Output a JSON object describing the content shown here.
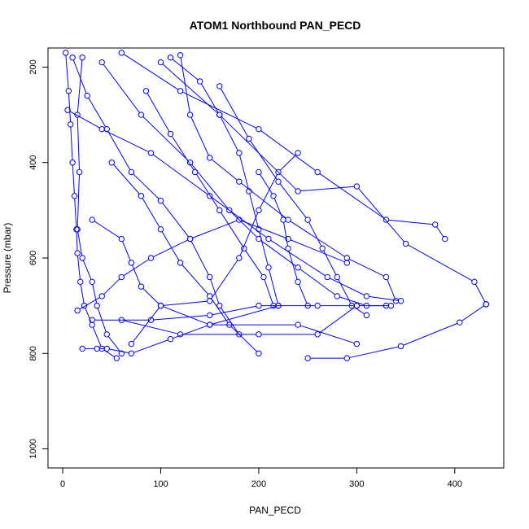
{
  "chart_data": {
    "type": "line",
    "title": "ATOM1 Northbound PAN_PECD",
    "xlabel": "PAN_PECD",
    "ylabel": "Pressure (mbar)",
    "xlim": [
      -15,
      450
    ],
    "ylim": [
      1040,
      160
    ],
    "y_reversed": true,
    "x_ticks": [
      0,
      100,
      200,
      300,
      400
    ],
    "y_ticks": [
      200,
      400,
      600,
      800,
      1000
    ],
    "grid": false,
    "legend": "none",
    "series_color": "#0000ff",
    "marker": "open-circle",
    "series": [
      {
        "values": [
          {
            "x": 3,
            "y": 170
          },
          {
            "x": 6,
            "y": 250
          },
          {
            "x": 8,
            "y": 320
          },
          {
            "x": 10,
            "y": 400
          },
          {
            "x": 12,
            "y": 470
          },
          {
            "x": 14,
            "y": 540
          },
          {
            "x": 15,
            "y": 590
          },
          {
            "x": 18,
            "y": 650
          },
          {
            "x": 22,
            "y": 700
          },
          {
            "x": 30,
            "y": 740
          },
          {
            "x": 40,
            "y": 790
          },
          {
            "x": 55,
            "y": 810
          }
        ]
      },
      {
        "values": [
          {
            "x": 20,
            "y": 180
          },
          {
            "x": 15,
            "y": 300
          },
          {
            "x": 17,
            "y": 420
          },
          {
            "x": 15,
            "y": 540
          },
          {
            "x": 20,
            "y": 600
          },
          {
            "x": 30,
            "y": 650
          },
          {
            "x": 35,
            "y": 700
          },
          {
            "x": 45,
            "y": 760
          },
          {
            "x": 60,
            "y": 800
          }
        ]
      },
      {
        "values": [
          {
            "x": 40,
            "y": 190
          },
          {
            "x": 80,
            "y": 300
          },
          {
            "x": 130,
            "y": 400
          },
          {
            "x": 170,
            "y": 500
          },
          {
            "x": 200,
            "y": 560
          },
          {
            "x": 240,
            "y": 620
          },
          {
            "x": 280,
            "y": 680
          },
          {
            "x": 310,
            "y": 700
          },
          {
            "x": 330,
            "y": 700
          }
        ]
      },
      {
        "values": [
          {
            "x": 60,
            "y": 170
          },
          {
            "x": 120,
            "y": 250
          },
          {
            "x": 200,
            "y": 330
          },
          {
            "x": 260,
            "y": 420
          },
          {
            "x": 330,
            "y": 520
          },
          {
            "x": 380,
            "y": 530
          },
          {
            "x": 390,
            "y": 560
          }
        ]
      },
      {
        "values": [
          {
            "x": 100,
            "y": 190
          },
          {
            "x": 160,
            "y": 300
          },
          {
            "x": 240,
            "y": 460
          },
          {
            "x": 300,
            "y": 450
          },
          {
            "x": 350,
            "y": 570
          },
          {
            "x": 420,
            "y": 650
          },
          {
            "x": 432,
            "y": 697
          }
        ]
      },
      {
        "values": [
          {
            "x": 30,
            "y": 730
          },
          {
            "x": 90,
            "y": 730
          },
          {
            "x": 150,
            "y": 720
          },
          {
            "x": 200,
            "y": 700
          },
          {
            "x": 260,
            "y": 700
          },
          {
            "x": 300,
            "y": 700
          },
          {
            "x": 335,
            "y": 700
          }
        ]
      },
      {
        "values": [
          {
            "x": 60,
            "y": 730
          },
          {
            "x": 120,
            "y": 760
          },
          {
            "x": 200,
            "y": 760
          },
          {
            "x": 260,
            "y": 760
          },
          {
            "x": 300,
            "y": 700
          }
        ]
      },
      {
        "values": [
          {
            "x": 250,
            "y": 810
          },
          {
            "x": 290,
            "y": 810
          },
          {
            "x": 345,
            "y": 785
          },
          {
            "x": 405,
            "y": 735
          },
          {
            "x": 432,
            "y": 697
          }
        ]
      },
      {
        "values": [
          {
            "x": 70,
            "y": 780
          },
          {
            "x": 100,
            "y": 700
          },
          {
            "x": 150,
            "y": 690
          },
          {
            "x": 180,
            "y": 600
          },
          {
            "x": 200,
            "y": 500
          },
          {
            "x": 220,
            "y": 420
          },
          {
            "x": 240,
            "y": 380
          }
        ]
      },
      {
        "values": [
          {
            "x": 5,
            "y": 290
          },
          {
            "x": 40,
            "y": 330
          },
          {
            "x": 90,
            "y": 380
          },
          {
            "x": 150,
            "y": 470
          },
          {
            "x": 210,
            "y": 560
          },
          {
            "x": 270,
            "y": 640
          },
          {
            "x": 310,
            "y": 680
          },
          {
            "x": 345,
            "y": 690
          }
        ]
      },
      {
        "values": [
          {
            "x": 110,
            "y": 180
          },
          {
            "x": 140,
            "y": 230
          },
          {
            "x": 160,
            "y": 300
          },
          {
            "x": 180,
            "y": 380
          },
          {
            "x": 190,
            "y": 460
          },
          {
            "x": 200,
            "y": 540
          },
          {
            "x": 210,
            "y": 620
          },
          {
            "x": 220,
            "y": 700
          }
        ]
      },
      {
        "values": [
          {
            "x": 50,
            "y": 400
          },
          {
            "x": 80,
            "y": 470
          },
          {
            "x": 100,
            "y": 540
          },
          {
            "x": 120,
            "y": 610
          },
          {
            "x": 150,
            "y": 680
          },
          {
            "x": 170,
            "y": 740
          },
          {
            "x": 200,
            "y": 800
          }
        ]
      },
      {
        "values": [
          {
            "x": 30,
            "y": 520
          },
          {
            "x": 60,
            "y": 560
          },
          {
            "x": 70,
            "y": 610
          },
          {
            "x": 80,
            "y": 660
          },
          {
            "x": 100,
            "y": 700
          },
          {
            "x": 150,
            "y": 740
          },
          {
            "x": 240,
            "y": 740
          },
          {
            "x": 300,
            "y": 780
          }
        ]
      },
      {
        "values": [
          {
            "x": 120,
            "y": 175
          },
          {
            "x": 130,
            "y": 300
          },
          {
            "x": 150,
            "y": 390
          },
          {
            "x": 180,
            "y": 440
          },
          {
            "x": 230,
            "y": 520
          },
          {
            "x": 290,
            "y": 600
          },
          {
            "x": 330,
            "y": 640
          },
          {
            "x": 340,
            "y": 690
          }
        ]
      },
      {
        "values": [
          {
            "x": 10,
            "y": 180
          },
          {
            "x": 25,
            "y": 260
          },
          {
            "x": 45,
            "y": 330
          },
          {
            "x": 70,
            "y": 420
          },
          {
            "x": 100,
            "y": 480
          },
          {
            "x": 130,
            "y": 560
          },
          {
            "x": 150,
            "y": 640
          },
          {
            "x": 160,
            "y": 700
          },
          {
            "x": 180,
            "y": 760
          }
        ]
      },
      {
        "values": [
          {
            "x": 160,
            "y": 240
          },
          {
            "x": 190,
            "y": 350
          },
          {
            "x": 220,
            "y": 440
          },
          {
            "x": 250,
            "y": 520
          },
          {
            "x": 265,
            "y": 580
          },
          {
            "x": 280,
            "y": 640
          },
          {
            "x": 295,
            "y": 700
          },
          {
            "x": 310,
            "y": 720
          }
        ]
      },
      {
        "values": [
          {
            "x": 20,
            "y": 790
          },
          {
            "x": 35,
            "y": 790
          },
          {
            "x": 45,
            "y": 790
          },
          {
            "x": 70,
            "y": 800
          },
          {
            "x": 110,
            "y": 770
          },
          {
            "x": 150,
            "y": 740
          },
          {
            "x": 220,
            "y": 700
          }
        ]
      },
      {
        "values": [
          {
            "x": 200,
            "y": 420
          },
          {
            "x": 215,
            "y": 470
          },
          {
            "x": 225,
            "y": 520
          },
          {
            "x": 230,
            "y": 580
          },
          {
            "x": 240,
            "y": 650
          },
          {
            "x": 250,
            "y": 700
          }
        ]
      },
      {
        "values": [
          {
            "x": 15,
            "y": 710
          },
          {
            "x": 40,
            "y": 680
          },
          {
            "x": 60,
            "y": 640
          },
          {
            "x": 90,
            "y": 600
          },
          {
            "x": 130,
            "y": 560
          },
          {
            "x": 180,
            "y": 520
          },
          {
            "x": 230,
            "y": 560
          },
          {
            "x": 290,
            "y": 610
          }
        ]
      },
      {
        "values": [
          {
            "x": 85,
            "y": 250
          },
          {
            "x": 110,
            "y": 340
          },
          {
            "x": 135,
            "y": 420
          },
          {
            "x": 160,
            "y": 500
          },
          {
            "x": 185,
            "y": 580
          },
          {
            "x": 205,
            "y": 640
          },
          {
            "x": 215,
            "y": 700
          }
        ]
      }
    ]
  }
}
